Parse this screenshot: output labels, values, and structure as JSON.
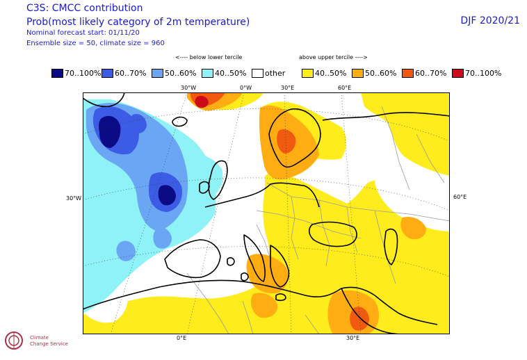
{
  "header": {
    "title_line1": "C3S: CMCC contribution",
    "title_line2": "Prob(most likely category of 2m temperature)",
    "forecast_start": "Nominal forecast start: 01/11/20",
    "ensemble": "Ensemble size = 50, climate size = 960",
    "season": "DJF 2020/21"
  },
  "legend": {
    "below_header": "<---- below lower tercile",
    "above_header": "above upper tercile ---->",
    "items": [
      {
        "label": "70..100%",
        "color": "#0b0b85"
      },
      {
        "label": "60..70%",
        "color": "#3d5ce6"
      },
      {
        "label": "50..60%",
        "color": "#6ba6f5"
      },
      {
        "label": "40..50%",
        "color": "#8ef2f7"
      },
      {
        "label": "other",
        "color": "#ffffff"
      },
      {
        "label": "40..50%",
        "color": "#ffec1c"
      },
      {
        "label": "50..60%",
        "color": "#ffad12"
      },
      {
        "label": "60..70%",
        "color": "#f05a10"
      },
      {
        "label": "70..100%",
        "color": "#cc0a1a"
      }
    ]
  },
  "axes": {
    "top": [
      "30°W",
      "0°W",
      "30°E",
      "60°E"
    ],
    "bottom": [
      "0°E",
      "30°E"
    ],
    "left": "30°W",
    "right": "60°E"
  },
  "logo": {
    "name": "Climate Change Service",
    "icon": "copernicus-logo-icon"
  }
}
